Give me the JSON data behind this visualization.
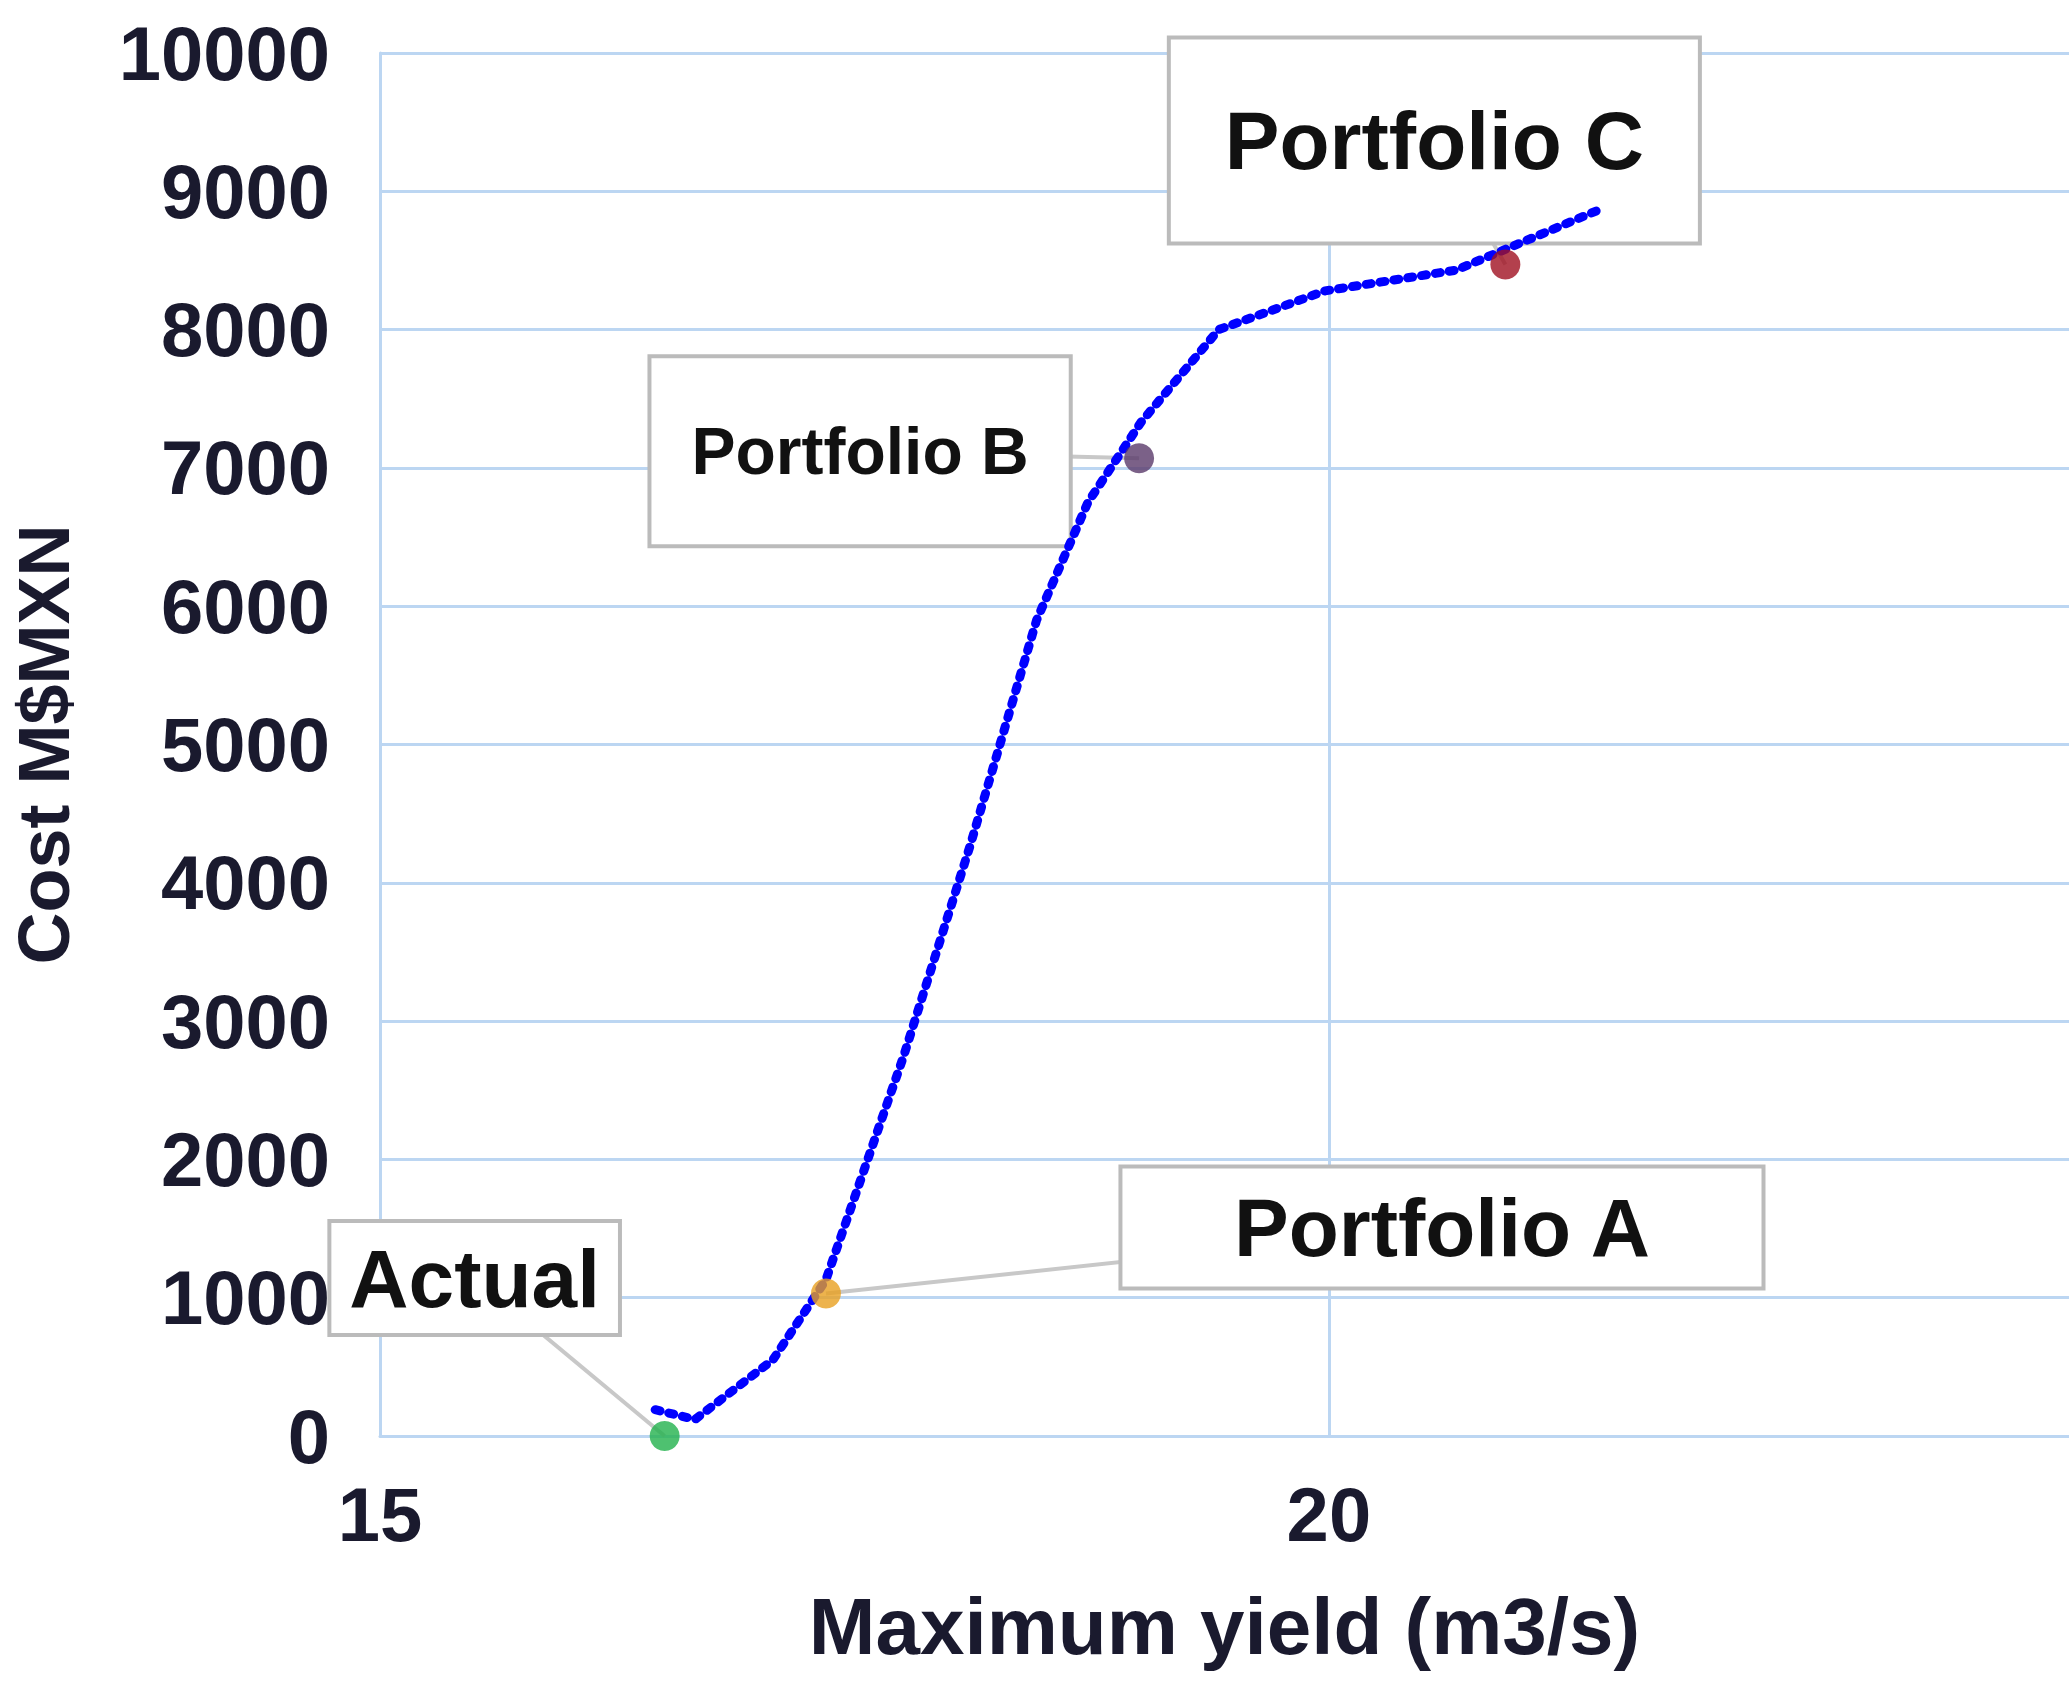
{
  "chart_data": {
    "type": "scatter",
    "xlabel": "Maximum yield (m3/s)",
    "ylabel": "Cost M$MXN",
    "xlim": [
      15,
      23.9
    ],
    "xticks": [
      15,
      20
    ],
    "ylim": [
      0,
      10000
    ],
    "yticks": [
      0,
      1000,
      2000,
      3000,
      4000,
      5000,
      6000,
      7000,
      8000,
      9000,
      10000
    ],
    "grid": true,
    "marker": "circle",
    "series": [
      {
        "type": "line",
        "line_style": "dotted",
        "marker": "none",
        "color": "#0000ff",
        "x": [
          16.45,
          16.66,
          17.07,
          17.35,
          17.76,
          18.11,
          18.46,
          18.73,
          19.01,
          19.42,
          19.98,
          20.67,
          21.43
        ],
        "values": [
          190,
          120,
          550,
          1130,
          2750,
          4270,
          5900,
          6750,
          7330,
          8000,
          8280,
          8430,
          8870
        ]
      },
      {
        "x": [
          16.5,
          17.35,
          19.0,
          20.93
        ],
        "values": [
          0,
          1030,
          7070,
          8470
        ],
        "colors": [
          "#22b14c",
          "#e8a020",
          "#5a3a6a",
          "#a01020"
        ]
      }
    ],
    "annotations": [
      {
        "text": "Actual",
        "x": 16.5,
        "y": 0
      },
      {
        "text": "Portfolio A",
        "x": 17.35,
        "y": 1030
      },
      {
        "text": "Portfolio B",
        "x": 19.0,
        "y": 7070
      },
      {
        "text": "Portfolio C",
        "x": 20.93,
        "y": 8470
      }
    ]
  }
}
